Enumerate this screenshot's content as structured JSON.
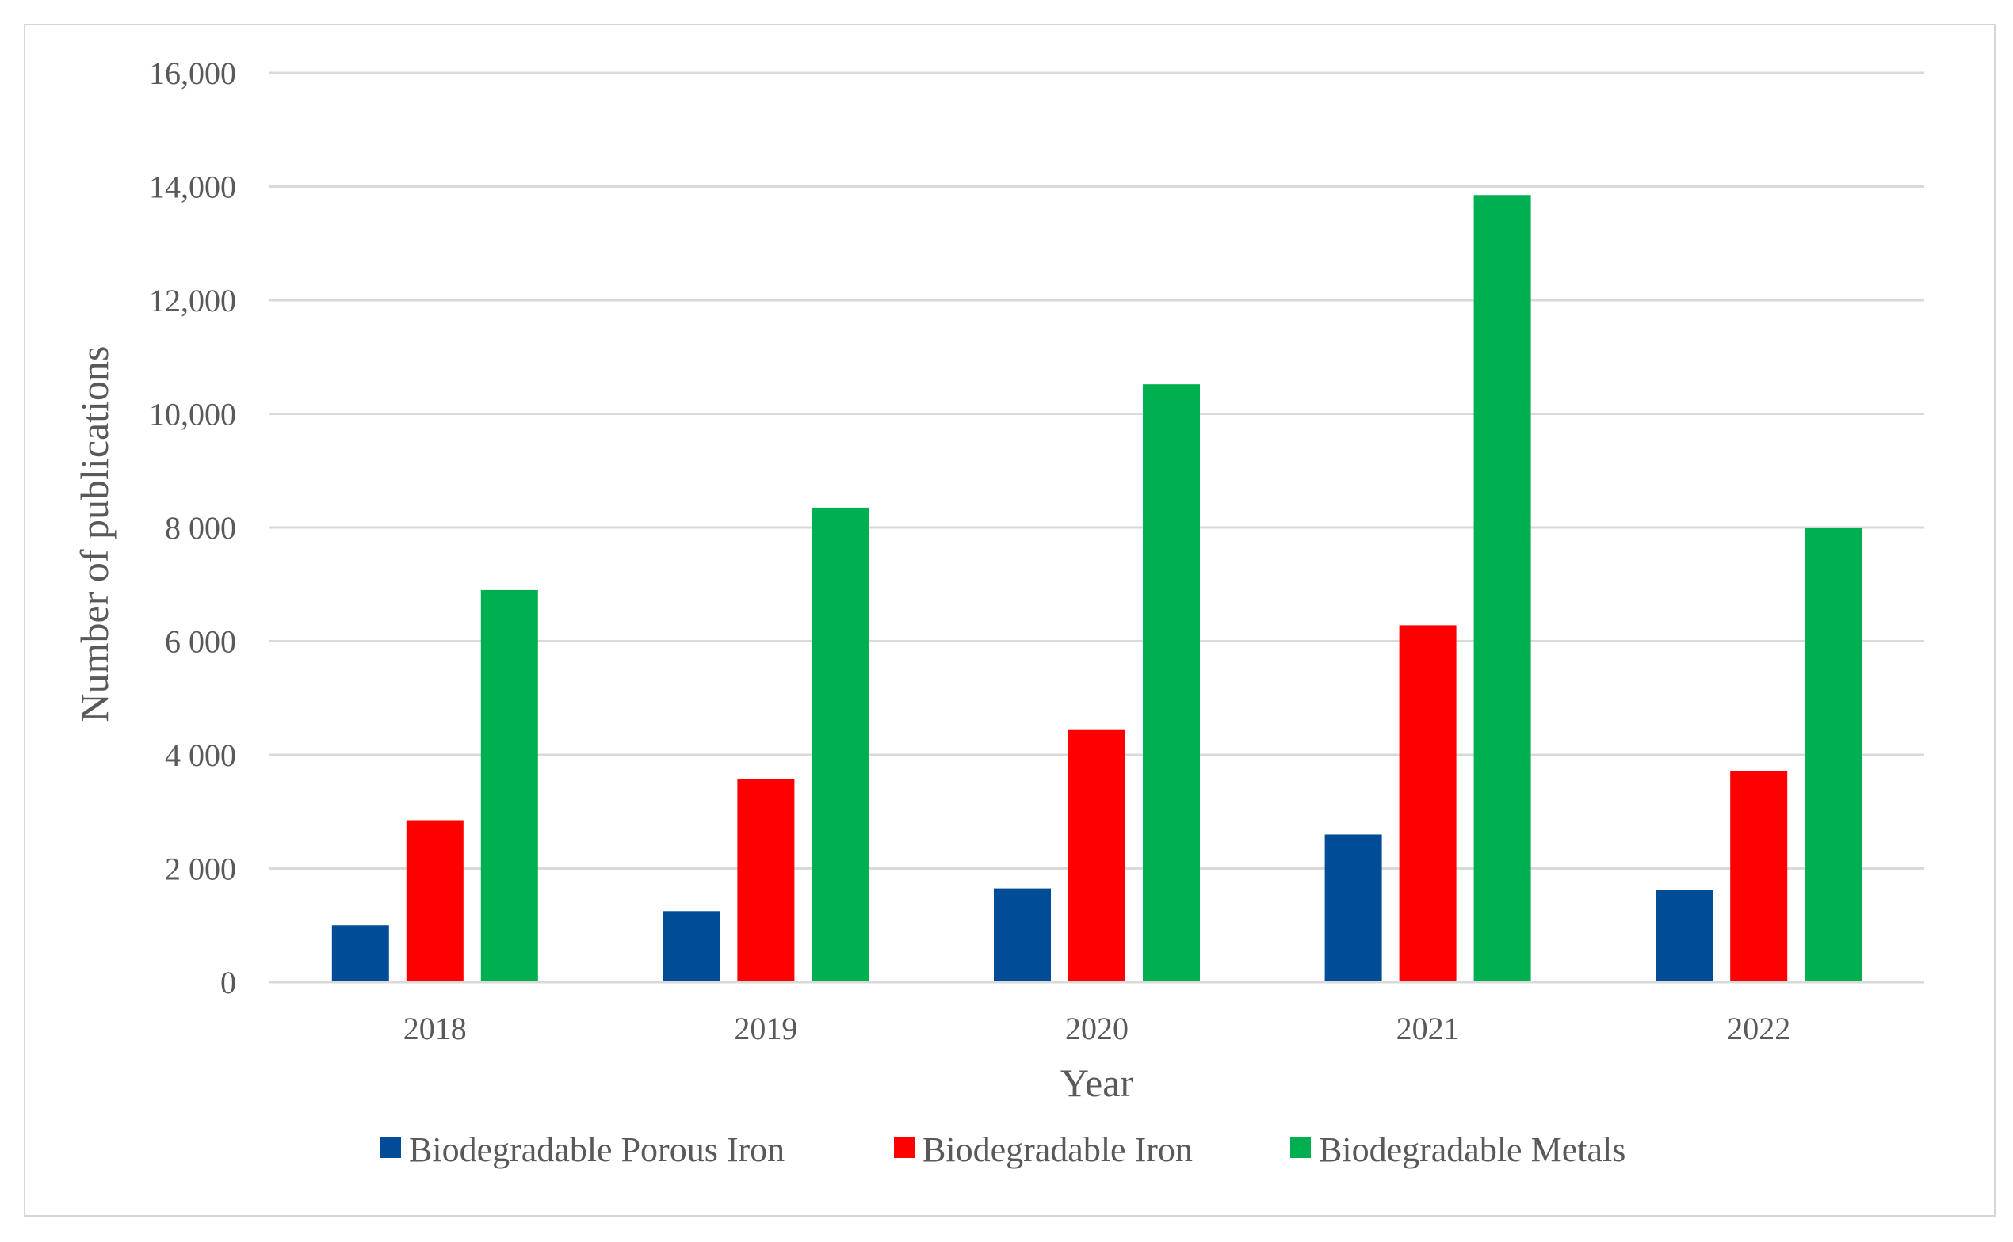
{
  "chart_data": {
    "type": "bar",
    "title": "",
    "xlabel": "Year",
    "ylabel": "Number of publications",
    "categories": [
      "2018",
      "2019",
      "2020",
      "2021",
      "2022"
    ],
    "series": [
      {
        "name": "Biodegradable Porous Iron",
        "color": "#004C97",
        "values": [
          1000,
          1250,
          1650,
          2600,
          1620
        ]
      },
      {
        "name": "Biodegradable Iron",
        "color": "#FF0000",
        "values": [
          2850,
          3580,
          4450,
          6280,
          3720
        ]
      },
      {
        "name": "Biodegradable Metals",
        "color": "#00B050",
        "values": [
          6900,
          8350,
          10520,
          13850,
          8000
        ]
      }
    ],
    "ylim": [
      0,
      16000
    ],
    "yticks": [
      0,
      2000,
      4000,
      6000,
      8000,
      10000,
      12000,
      14000,
      16000
    ],
    "ytick_labels": [
      "0",
      "2 000",
      "4 000",
      "6 000",
      "8 000",
      "10,000",
      "12,000",
      "14,000",
      "16,000"
    ],
    "grid": true,
    "legend_position": "bottom"
  }
}
